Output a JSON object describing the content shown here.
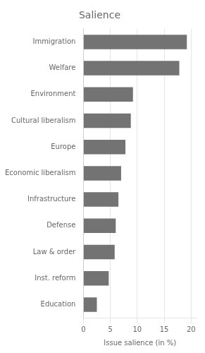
{
  "chart_data": {
    "type": "bar",
    "orientation": "horizontal",
    "title": "Salience",
    "xlabel": "Issue salience (in %)",
    "categories": [
      "Immigration",
      "Welfare",
      "Environment",
      "Cultural liberalism",
      "Europe",
      "Economic liberalism",
      "Infrastructure",
      "Defense",
      "Law & order",
      "Inst. reform",
      "Education"
    ],
    "values": [
      19.2,
      17.8,
      9.2,
      8.8,
      7.8,
      7.0,
      6.5,
      6.0,
      5.8,
      4.7,
      2.5
    ],
    "color": "#737373",
    "xlim": [
      0,
      21
    ],
    "xticks": [
      0,
      5,
      10,
      15,
      20
    ],
    "grid": true
  }
}
